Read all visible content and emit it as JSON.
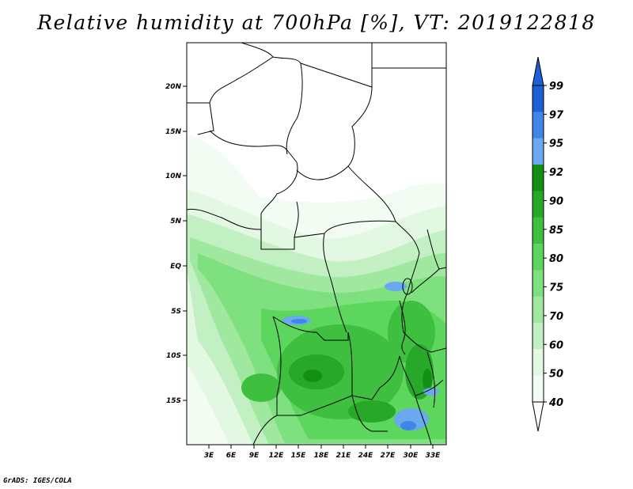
{
  "title": "Relative humidity at 700hPa [%], VT: 2019122818",
  "credit": "GrADS: IGES/COLA",
  "map": {
    "lat_labels": [
      "20N",
      "15N",
      "10N",
      "5N",
      "EQ",
      "5S",
      "10S",
      "15S"
    ],
    "lon_labels": [
      "3E",
      "6E",
      "9E",
      "12E",
      "15E",
      "18E",
      "21E",
      "24E",
      "27E",
      "30E",
      "33E"
    ]
  },
  "colorbar": {
    "labels": [
      "99",
      "97",
      "95",
      "92",
      "90",
      "85",
      "80",
      "75",
      "70",
      "60",
      "50",
      "40"
    ],
    "colors": [
      "#1f5fd6",
      "#3f86e8",
      "#6aa8f0",
      "#139013",
      "#28a828",
      "#3fbf3f",
      "#5cd65c",
      "#7fe07f",
      "#a0e8a0",
      "#c3f0c3",
      "#e2f8e2",
      "#f2fcf2"
    ]
  }
}
